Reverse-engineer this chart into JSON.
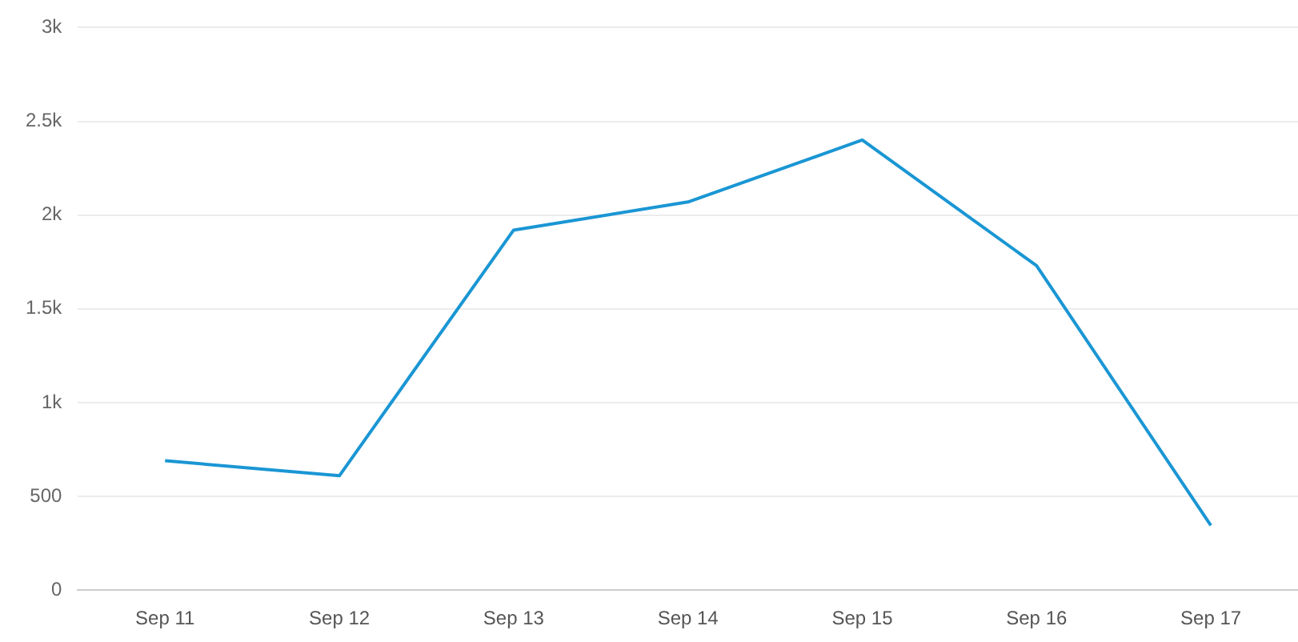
{
  "chart_data": {
    "type": "line",
    "categories": [
      "Sep 11",
      "Sep 12",
      "Sep 13",
      "Sep 14",
      "Sep 15",
      "Sep 16",
      "Sep 17"
    ],
    "series": [
      {
        "color": "#1a96d4",
        "values": [
          690,
          610,
          1920,
          2070,
          2400,
          1730,
          345
        ]
      }
    ],
    "ylim": [
      0,
      3000
    ],
    "yticks": [
      0,
      500,
      {
        "value": 1000,
        "label": "1k"
      },
      {
        "value": 1500,
        "label": "1.5k"
      },
      {
        "value": 2000,
        "label": "2k"
      },
      {
        "value": 2500,
        "label": "2.5k"
      },
      {
        "value": 3000,
        "label": "3k"
      }
    ],
    "grid": "y",
    "legend": false,
    "marker": "none"
  }
}
